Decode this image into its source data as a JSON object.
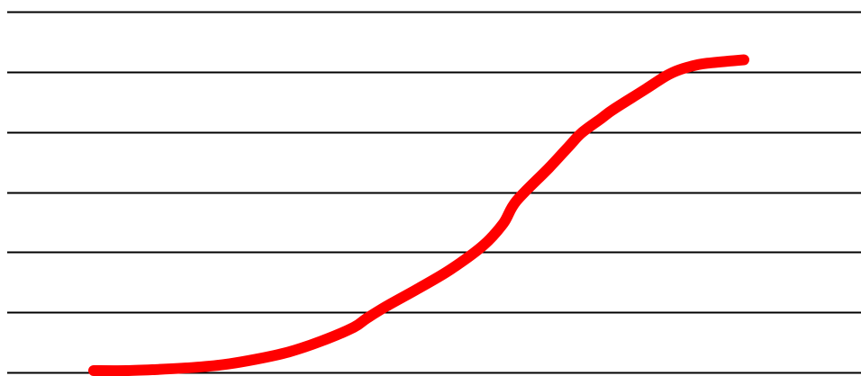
{
  "chart_data": {
    "type": "line",
    "title": "",
    "xlabel": "",
    "ylabel": "",
    "grid": true,
    "legend": "none",
    "xlim": [
      0,
      100
    ],
    "ylim": [
      0,
      6
    ],
    "gridlines_y": [
      0,
      1,
      2,
      3,
      4,
      5,
      6
    ],
    "series": [
      {
        "color": "#ff0000",
        "x": [
          0,
          5,
          10,
          15,
          20,
          25,
          30,
          35,
          40,
          42,
          45,
          50,
          55,
          60,
          63,
          65,
          70,
          73,
          75,
          78,
          80,
          85,
          88,
          90,
          93,
          95,
          100
        ],
        "y": [
          0.03,
          0.03,
          0.05,
          0.08,
          0.13,
          0.22,
          0.34,
          0.52,
          0.75,
          0.9,
          1.1,
          1.4,
          1.72,
          2.12,
          2.48,
          2.85,
          3.4,
          3.75,
          3.98,
          4.22,
          4.38,
          4.72,
          4.93,
          5.03,
          5.12,
          5.15,
          5.2
        ]
      }
    ]
  }
}
